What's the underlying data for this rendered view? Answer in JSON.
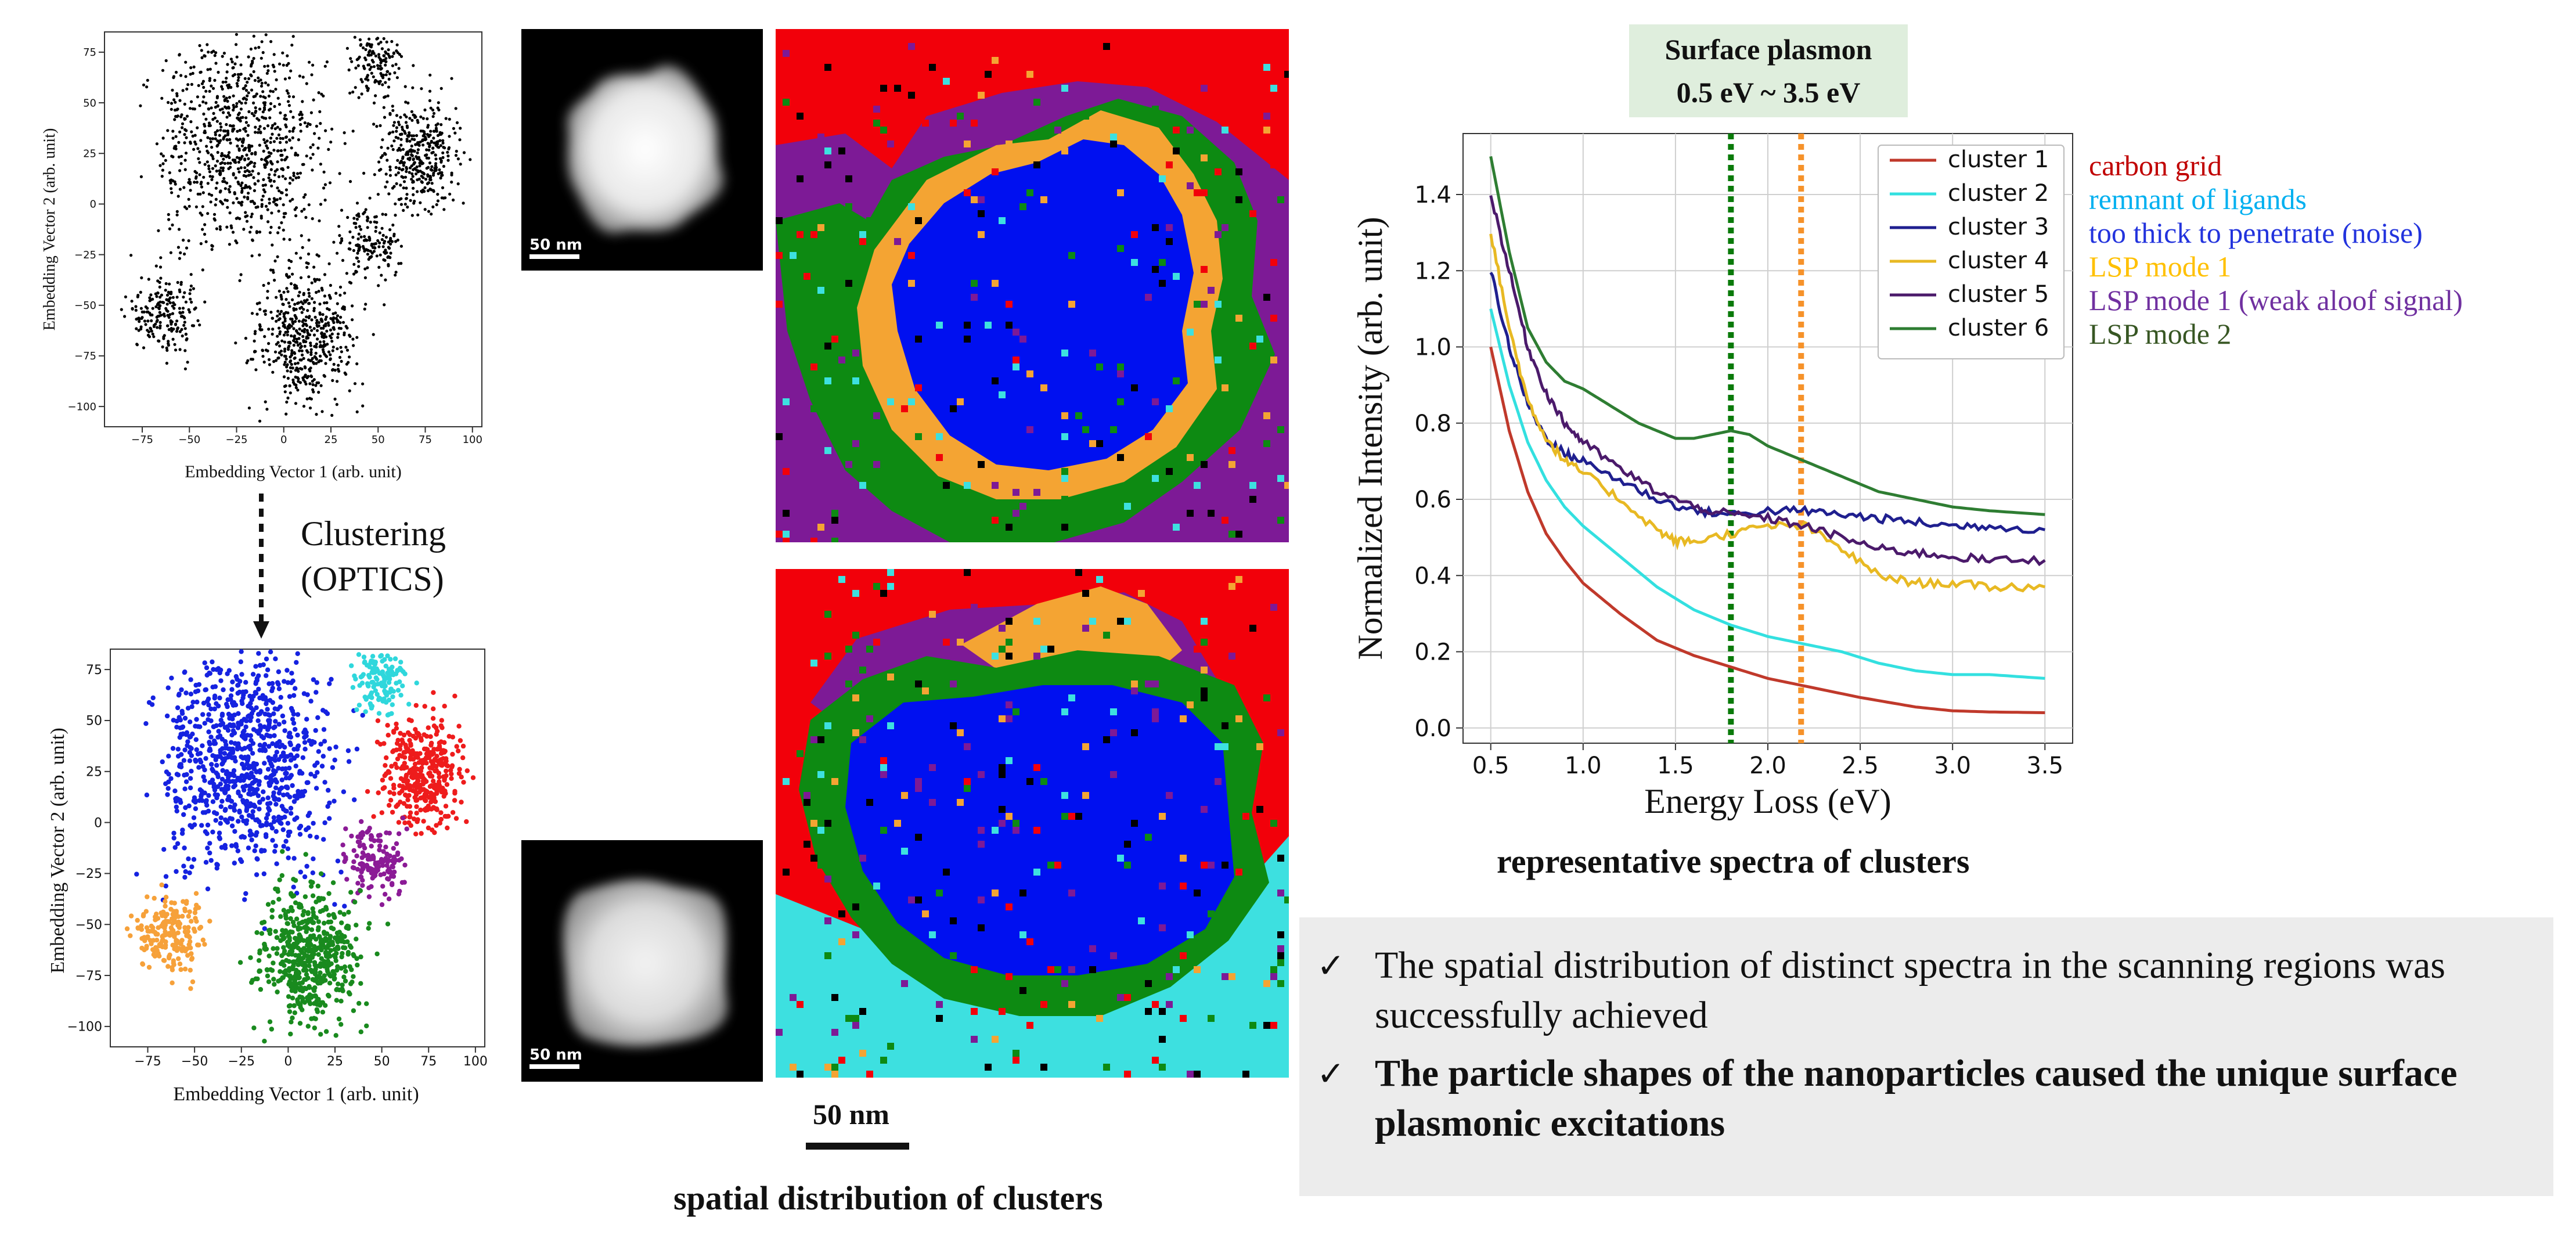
{
  "tsne_top": {
    "xlabel": "Embedding Vector 1 (arb. unit)",
    "ylabel": "Embedding Vector 2 (arb. unit)",
    "xticks": [
      "−75",
      "−50",
      "−25",
      "0",
      "25",
      "50",
      "75",
      "100"
    ],
    "yticks": [
      "75",
      "50",
      "25",
      "0",
      "−25",
      "−50",
      "−75",
      "−100"
    ]
  },
  "tsne_bottom": {
    "xlabel": "Embedding Vector 1 (arb. unit)",
    "ylabel": "Embedding Vector 2 (arb. unit)",
    "xticks": [
      "−75",
      "−50",
      "−25",
      "0",
      "25",
      "50",
      "75",
      "100"
    ],
    "yticks": [
      "75",
      "50",
      "25",
      "0",
      "−25",
      "−50",
      "−75",
      "−100"
    ]
  },
  "clustering": {
    "line1": "Clustering",
    "line2": "(OPTICS)"
  },
  "haadf_top": {
    "scalebar": "50 nm"
  },
  "haadf_bottom": {
    "scalebar": "50 nm"
  },
  "maps": {
    "scalebar": "50 nm",
    "caption": "spatial distribution of clusters"
  },
  "plasmon_box": {
    "line1": "Surface plasmon",
    "line2": "0.5 eV ~ 3.5 eV"
  },
  "chart_data": {
    "type": "line",
    "xlabel": "Energy Loss (eV)",
    "ylabel": "Normalized Intensity (arb. unit)",
    "xlim": [
      0.35,
      3.65
    ],
    "ylim": [
      -0.04,
      1.56
    ],
    "xticks": [
      "0.5",
      "1.0",
      "1.5",
      "2.0",
      "2.5",
      "3.0",
      "3.5"
    ],
    "yticks": [
      "0.0",
      "0.2",
      "0.4",
      "0.6",
      "0.8",
      "1.0",
      "1.2",
      "1.4"
    ],
    "grid": true,
    "legend_position": "top-right",
    "vlines": [
      {
        "x": 1.8,
        "color": "#0a7a0a",
        "style": "dotted"
      },
      {
        "x": 2.18,
        "color": "#f6922a",
        "style": "dotted"
      }
    ],
    "series": [
      {
        "name": "cluster 1",
        "color": "#c0392b",
        "x": [
          0.5,
          0.6,
          0.7,
          0.8,
          0.9,
          1.0,
          1.2,
          1.4,
          1.6,
          1.8,
          2.0,
          2.2,
          2.5,
          2.8,
          3.0,
          3.2,
          3.5
        ],
        "values": [
          1.0,
          0.78,
          0.62,
          0.51,
          0.44,
          0.38,
          0.3,
          0.23,
          0.19,
          0.16,
          0.13,
          0.11,
          0.08,
          0.055,
          0.045,
          0.042,
          0.04
        ]
      },
      {
        "name": "cluster 2",
        "color": "#33e0e0",
        "x": [
          0.5,
          0.6,
          0.7,
          0.8,
          0.9,
          1.0,
          1.2,
          1.4,
          1.6,
          1.8,
          2.0,
          2.2,
          2.4,
          2.6,
          2.8,
          3.0,
          3.2,
          3.5
        ],
        "values": [
          1.1,
          0.9,
          0.75,
          0.65,
          0.58,
          0.53,
          0.45,
          0.37,
          0.31,
          0.27,
          0.24,
          0.22,
          0.2,
          0.17,
          0.15,
          0.14,
          0.14,
          0.13
        ]
      },
      {
        "name": "cluster 3",
        "color": "#1f1f8f",
        "x": [
          0.5,
          0.6,
          0.7,
          0.8,
          0.9,
          1.0,
          1.2,
          1.4,
          1.6,
          1.8,
          2.0,
          2.2,
          2.4,
          2.6,
          2.8,
          3.0,
          3.2,
          3.5
        ],
        "values": [
          1.2,
          1.0,
          0.85,
          0.76,
          0.72,
          0.7,
          0.65,
          0.6,
          0.57,
          0.56,
          0.57,
          0.57,
          0.56,
          0.55,
          0.54,
          0.53,
          0.53,
          0.52
        ]
      },
      {
        "name": "cluster 4",
        "color": "#e8b923",
        "x": [
          0.5,
          0.6,
          0.7,
          0.8,
          0.9,
          1.0,
          1.2,
          1.4,
          1.5,
          1.6,
          1.8,
          2.0,
          2.2,
          2.4,
          2.6,
          2.8,
          3.0,
          3.2,
          3.5
        ],
        "values": [
          1.3,
          1.05,
          0.86,
          0.76,
          0.7,
          0.67,
          0.6,
          0.52,
          0.49,
          0.49,
          0.51,
          0.53,
          0.53,
          0.47,
          0.4,
          0.38,
          0.38,
          0.37,
          0.37
        ]
      },
      {
        "name": "cluster 5",
        "color": "#4b1a6b",
        "x": [
          0.5,
          0.6,
          0.7,
          0.8,
          0.9,
          1.0,
          1.2,
          1.4,
          1.6,
          1.8,
          2.0,
          2.2,
          2.4,
          2.6,
          2.8,
          3.0,
          3.2,
          3.5
        ],
        "values": [
          1.4,
          1.2,
          1.0,
          0.88,
          0.8,
          0.75,
          0.68,
          0.62,
          0.58,
          0.56,
          0.55,
          0.53,
          0.5,
          0.47,
          0.46,
          0.45,
          0.44,
          0.44
        ]
      },
      {
        "name": "cluster 6",
        "color": "#2e7d32",
        "x": [
          0.5,
          0.6,
          0.7,
          0.8,
          0.9,
          1.0,
          1.1,
          1.2,
          1.3,
          1.4,
          1.5,
          1.6,
          1.7,
          1.8,
          1.9,
          2.0,
          2.2,
          2.4,
          2.6,
          2.8,
          3.0,
          3.2,
          3.5
        ],
        "values": [
          1.5,
          1.25,
          1.05,
          0.96,
          0.91,
          0.89,
          0.86,
          0.83,
          0.8,
          0.78,
          0.76,
          0.76,
          0.77,
          0.78,
          0.77,
          0.74,
          0.7,
          0.66,
          0.62,
          0.6,
          0.58,
          0.57,
          0.56
        ]
      }
    ]
  },
  "legend_meanings": [
    {
      "text": "carbon grid",
      "color": "#c00000"
    },
    {
      "text": "remnant of ligands",
      "color": "#00b0f0"
    },
    {
      "text": "too thick to penetrate (noise)",
      "color": "#2233dd"
    },
    {
      "text": "LSP mode 1",
      "color": "#ffc000"
    },
    {
      "text": "LSP mode 1 (weak aloof signal)",
      "color": "#7030a0"
    },
    {
      "text": "LSP mode 2",
      "color": "#375623"
    }
  ],
  "spectra_caption": "representative spectra of clusters",
  "summary": {
    "bullet1": "The spatial distribution of distinct spectra in the scanning regions was successfully achieved",
    "bullet2": "The particle shapes of the nanoparticles caused the unique surface plasmonic excitations"
  }
}
